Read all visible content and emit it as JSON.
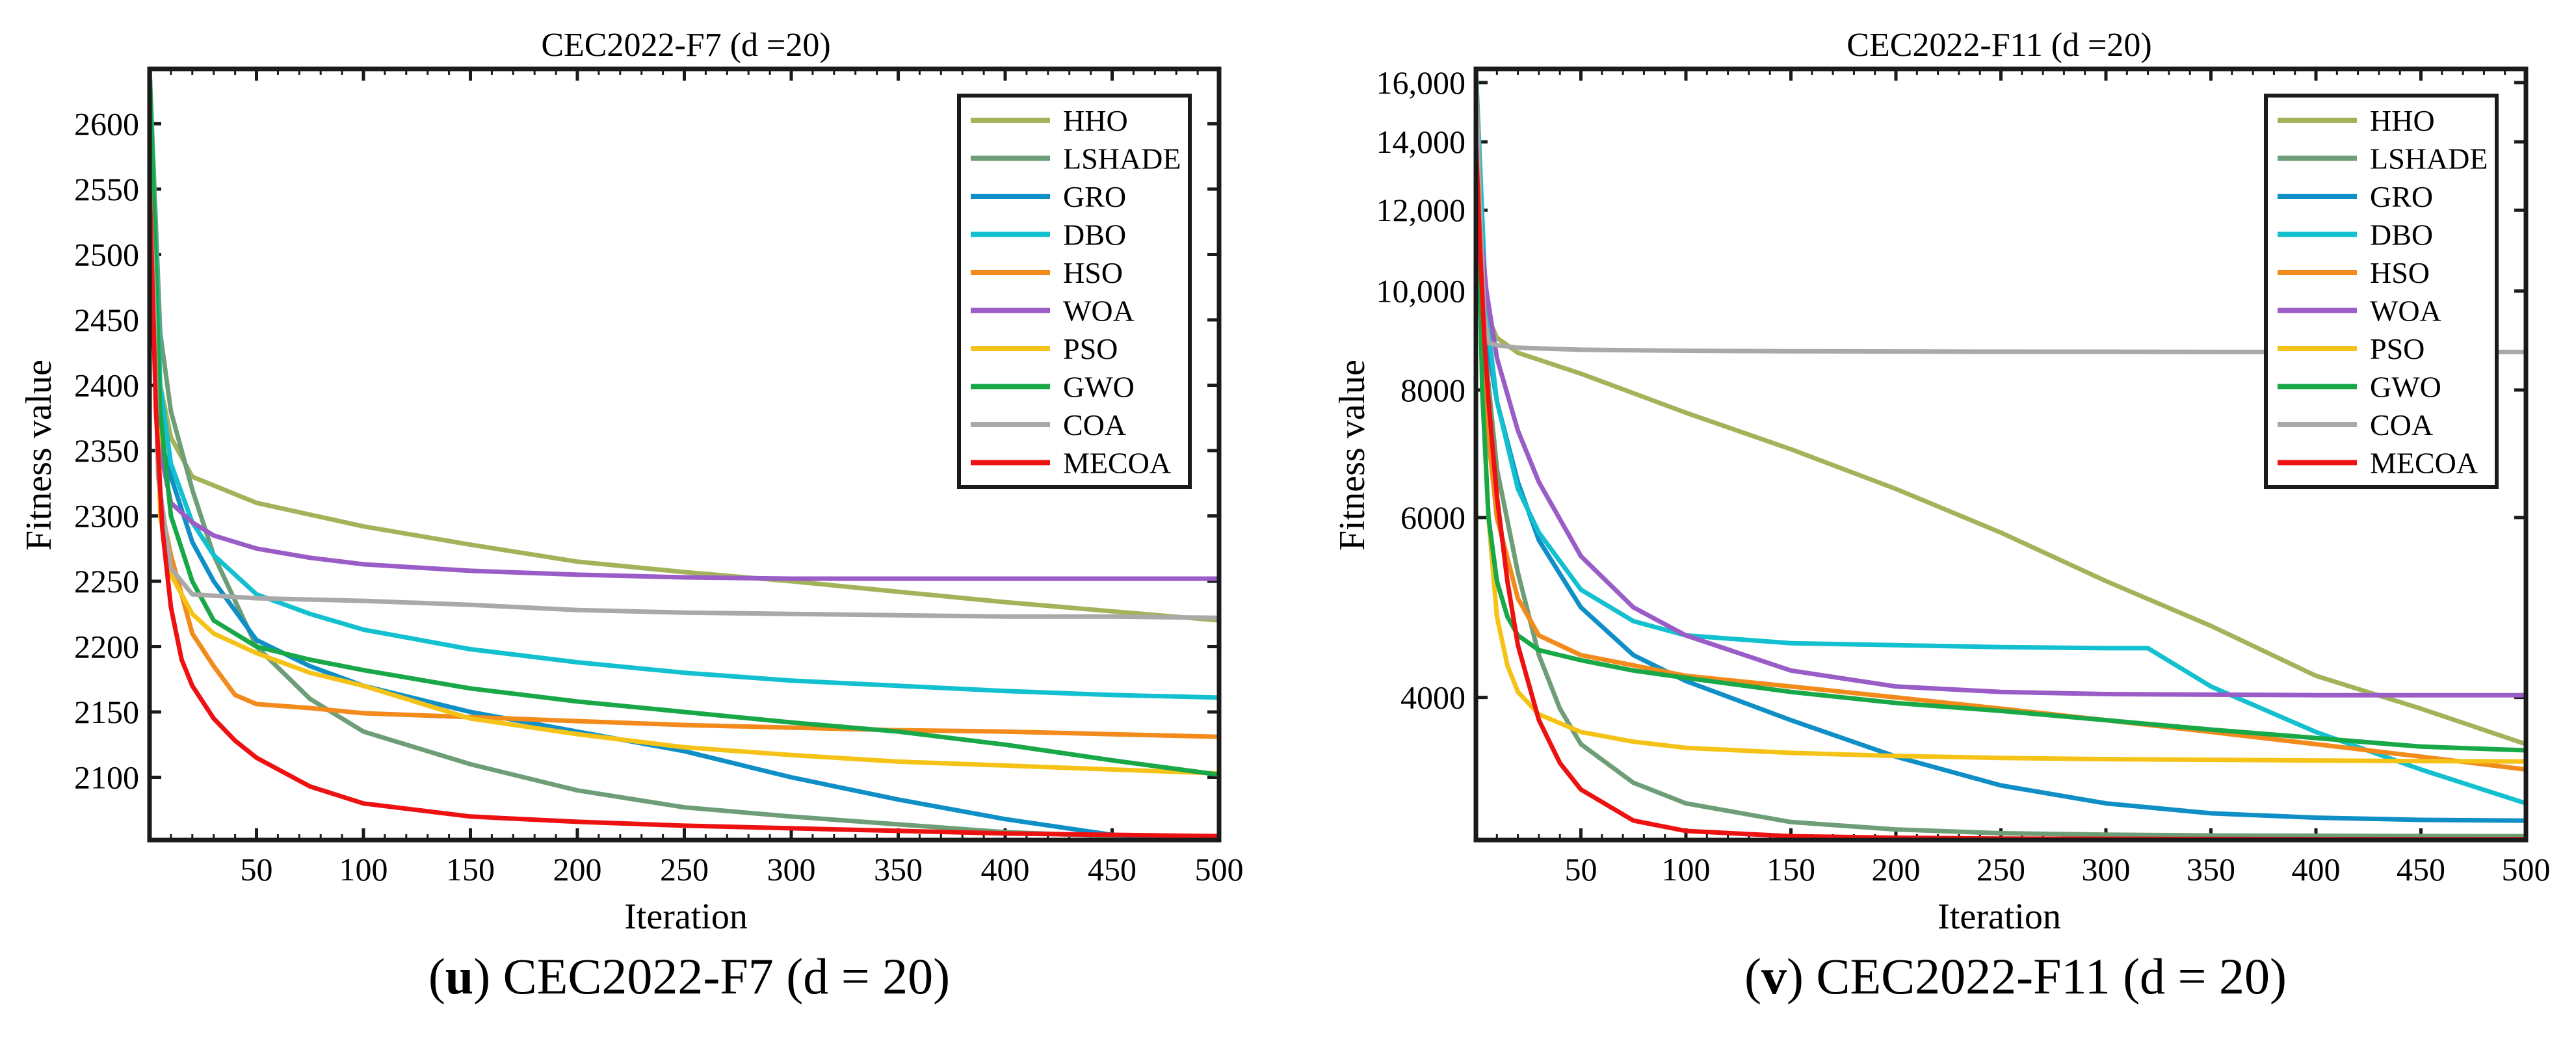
{
  "colors": {
    "HHO": "#a3b35a",
    "LSHADE": "#6e9e78",
    "GRO": "#0f8fc6",
    "DBO": "#12c0cf",
    "HSO": "#f28a1c",
    "WOA": "#9a5cc6",
    "PSO": "#f5c318",
    "GWO": "#18a848",
    "COA": "#a9a9a9",
    "MECOA": "#ee1111"
  },
  "captions": {
    "left": {
      "letter": "u",
      "text": "CEC2022-F7 (d = 20)"
    },
    "right": {
      "letter": "v",
      "text": "CEC2022-F11 (d = 20)"
    }
  },
  "chart_data": [
    {
      "type": "line",
      "title": "CEC2022-F7 (d =20)",
      "xlabel": "Iteration",
      "ylabel": "Fitness value",
      "xlim": [
        0,
        500
      ],
      "ylim": [
        2052,
        2642
      ],
      "xticks": [
        50,
        100,
        150,
        200,
        250,
        300,
        350,
        400,
        450,
        500
      ],
      "yticks": [
        2100,
        2150,
        2200,
        2250,
        2300,
        2350,
        2400,
        2450,
        2500,
        2550,
        2600
      ],
      "ytick_labels": [
        "2100",
        "2150",
        "2200",
        "2250",
        "2300",
        "2350",
        "2400",
        "2450",
        "2500",
        "2550",
        "2600"
      ],
      "legend_position": "top-right",
      "series": [
        {
          "name": "HHO",
          "x": [
            0,
            5,
            10,
            20,
            50,
            100,
            150,
            200,
            250,
            300,
            350,
            400,
            450,
            500
          ],
          "y": [
            2642,
            2400,
            2360,
            2330,
            2310,
            2292,
            2278,
            2265,
            2257,
            2250,
            2242,
            2234,
            2227,
            2220
          ]
        },
        {
          "name": "LSHADE",
          "x": [
            0,
            5,
            10,
            20,
            30,
            50,
            75,
            100,
            150,
            200,
            250,
            300,
            350,
            400,
            450,
            500
          ],
          "y": [
            2642,
            2440,
            2380,
            2320,
            2270,
            2200,
            2160,
            2135,
            2110,
            2090,
            2077,
            2070,
            2064,
            2058,
            2055,
            2052
          ]
        },
        {
          "name": "GRO",
          "x": [
            0,
            5,
            10,
            20,
            30,
            50,
            75,
            100,
            150,
            200,
            250,
            300,
            350,
            400,
            450,
            500
          ],
          "y": [
            2642,
            2360,
            2330,
            2280,
            2250,
            2205,
            2185,
            2170,
            2150,
            2135,
            2120,
            2100,
            2083,
            2068,
            2056,
            2052
          ]
        },
        {
          "name": "DBO",
          "x": [
            0,
            5,
            10,
            20,
            30,
            50,
            75,
            100,
            150,
            200,
            250,
            300,
            350,
            400,
            450,
            500
          ],
          "y": [
            2642,
            2400,
            2340,
            2295,
            2270,
            2240,
            2225,
            2213,
            2198,
            2188,
            2180,
            2174,
            2170,
            2166,
            2163,
            2161
          ]
        },
        {
          "name": "HSO",
          "x": [
            0,
            5,
            10,
            20,
            30,
            40,
            50,
            75,
            100,
            150,
            200,
            250,
            300,
            350,
            400,
            450,
            500
          ],
          "y": [
            2642,
            2310,
            2270,
            2210,
            2185,
            2163,
            2156,
            2153,
            2149,
            2146,
            2143,
            2140,
            2138,
            2136,
            2135,
            2133,
            2131
          ]
        },
        {
          "name": "WOA",
          "x": [
            0,
            5,
            10,
            20,
            30,
            50,
            75,
            100,
            150,
            200,
            250,
            300,
            350,
            400,
            450,
            500
          ],
          "y": [
            2642,
            2350,
            2310,
            2295,
            2285,
            2275,
            2268,
            2263,
            2258,
            2255,
            2253,
            2252,
            2252,
            2252,
            2252,
            2252
          ]
        },
        {
          "name": "PSO",
          "x": [
            0,
            5,
            10,
            20,
            30,
            50,
            75,
            100,
            150,
            200,
            250,
            300,
            350,
            400,
            450,
            500
          ],
          "y": [
            2642,
            2300,
            2255,
            2225,
            2210,
            2195,
            2180,
            2170,
            2145,
            2133,
            2123,
            2117,
            2112,
            2109,
            2106,
            2103
          ]
        },
        {
          "name": "GWO",
          "x": [
            0,
            5,
            10,
            20,
            30,
            50,
            75,
            100,
            150,
            200,
            250,
            300,
            350,
            400,
            450,
            500
          ],
          "y": [
            2642,
            2380,
            2300,
            2250,
            2220,
            2200,
            2190,
            2182,
            2168,
            2158,
            2150,
            2142,
            2135,
            2125,
            2113,
            2102
          ]
        },
        {
          "name": "COA",
          "x": [
            0,
            2,
            4,
            10,
            20,
            50,
            100,
            150,
            200,
            250,
            300,
            350,
            400,
            450,
            500
          ],
          "y": [
            2555,
            2470,
            2330,
            2260,
            2240,
            2237,
            2235,
            2232,
            2228,
            2226,
            2225,
            2224,
            2223,
            2223,
            2222
          ]
        },
        {
          "name": "MECOA",
          "x": [
            0,
            3,
            6,
            10,
            15,
            20,
            30,
            40,
            50,
            75,
            100,
            150,
            200,
            250,
            300,
            350,
            400,
            450,
            500
          ],
          "y": [
            2555,
            2380,
            2290,
            2230,
            2190,
            2170,
            2145,
            2128,
            2115,
            2093,
            2080,
            2070,
            2066,
            2063,
            2061,
            2059,
            2057,
            2056,
            2055
          ]
        }
      ]
    },
    {
      "type": "line",
      "title": "CEC2022-F11 (d =20)",
      "xlabel": "Iteration",
      "ylabel": "Fitness value",
      "xlim": [
        0,
        500
      ],
      "ylim": [
        2900,
        16500
      ],
      "yscale": "log",
      "xticks": [
        50,
        100,
        150,
        200,
        250,
        300,
        350,
        400,
        450,
        500
      ],
      "yticks": [
        4000,
        6000,
        8000,
        10000,
        12000,
        14000,
        16000
      ],
      "ytick_labels": [
        "4000",
        "6000",
        "8000",
        "10,000",
        "12,000",
        "14,000",
        "16,000"
      ],
      "legend_position": "top-right",
      "series": [
        {
          "name": "HHO",
          "x": [
            0,
            3,
            6,
            10,
            20,
            50,
            100,
            150,
            200,
            250,
            300,
            350,
            400,
            450,
            500
          ],
          "y": [
            16500,
            11000,
            9400,
            9000,
            8700,
            8300,
            7600,
            7000,
            6400,
            5800,
            5200,
            4700,
            4200,
            3900,
            3600
          ]
        },
        {
          "name": "LSHADE",
          "x": [
            0,
            5,
            10,
            20,
            30,
            40,
            50,
            75,
            100,
            150,
            200,
            250,
            300,
            350,
            400,
            450,
            500
          ],
          "y": [
            16500,
            8500,
            6700,
            5300,
            4400,
            3900,
            3600,
            3300,
            3150,
            3020,
            2970,
            2945,
            2935,
            2930,
            2928,
            2926,
            2925
          ]
        },
        {
          "name": "GRO",
          "x": [
            0,
            5,
            10,
            20,
            30,
            50,
            75,
            100,
            150,
            200,
            250,
            300,
            350,
            400,
            450,
            500
          ],
          "y": [
            16500,
            9000,
            7800,
            6500,
            5700,
            4900,
            4400,
            4150,
            3800,
            3500,
            3280,
            3150,
            3080,
            3050,
            3035,
            3030
          ]
        },
        {
          "name": "DBO",
          "x": [
            0,
            5,
            10,
            20,
            30,
            50,
            75,
            100,
            150,
            200,
            250,
            300,
            320,
            350,
            400,
            450,
            500
          ],
          "y": [
            16500,
            9500,
            7800,
            6400,
            5800,
            5100,
            4750,
            4600,
            4520,
            4500,
            4480,
            4470,
            4470,
            4100,
            3700,
            3400,
            3150
          ]
        },
        {
          "name": "HSO",
          "x": [
            0,
            5,
            10,
            20,
            30,
            50,
            75,
            100,
            150,
            200,
            250,
            300,
            350,
            400,
            450,
            500
          ],
          "y": [
            16500,
            7500,
            6000,
            5000,
            4600,
            4400,
            4300,
            4200,
            4100,
            4000,
            3900,
            3800,
            3700,
            3600,
            3500,
            3400
          ]
        },
        {
          "name": "WOA",
          "x": [
            0,
            5,
            10,
            20,
            30,
            50,
            75,
            100,
            150,
            200,
            250,
            300,
            350,
            400,
            450,
            500
          ],
          "y": [
            12800,
            10000,
            8600,
            7300,
            6500,
            5500,
            4900,
            4600,
            4250,
            4100,
            4050,
            4030,
            4025,
            4020,
            4020,
            4020
          ]
        },
        {
          "name": "PSO",
          "x": [
            0,
            3,
            6,
            10,
            15,
            20,
            30,
            50,
            75,
            100,
            150,
            200,
            250,
            300,
            350,
            400,
            450,
            500
          ],
          "y": [
            16500,
            8000,
            6000,
            4800,
            4300,
            4050,
            3850,
            3700,
            3620,
            3570,
            3530,
            3505,
            3490,
            3480,
            3475,
            3470,
            3465,
            3462
          ]
        },
        {
          "name": "GWO",
          "x": [
            0,
            3,
            6,
            10,
            15,
            20,
            30,
            50,
            75,
            100,
            150,
            200,
            250,
            300,
            350,
            400,
            450,
            500
          ],
          "y": [
            16500,
            8000,
            6000,
            5200,
            4800,
            4600,
            4450,
            4350,
            4250,
            4180,
            4050,
            3950,
            3880,
            3800,
            3720,
            3650,
            3580,
            3550
          ]
        },
        {
          "name": "COA",
          "x": [
            0,
            2,
            4,
            6,
            10,
            20,
            50,
            100,
            150,
            200,
            250,
            300,
            350,
            400,
            450,
            500
          ],
          "y": [
            16000,
            12000,
            9500,
            8900,
            8850,
            8800,
            8760,
            8740,
            8730,
            8725,
            8722,
            8720,
            8718,
            8717,
            8716,
            8715
          ]
        },
        {
          "name": "MECOA",
          "x": [
            0,
            2,
            4,
            6,
            10,
            15,
            20,
            30,
            40,
            50,
            75,
            100,
            150,
            200,
            250,
            300,
            350,
            400,
            450,
            500
          ],
          "y": [
            14000,
            11000,
            9000,
            7800,
            6300,
            5200,
            4500,
            3800,
            3450,
            3250,
            3030,
            2960,
            2925,
            2915,
            2910,
            2908,
            2907,
            2906,
            2905,
            2905
          ]
        }
      ]
    }
  ]
}
